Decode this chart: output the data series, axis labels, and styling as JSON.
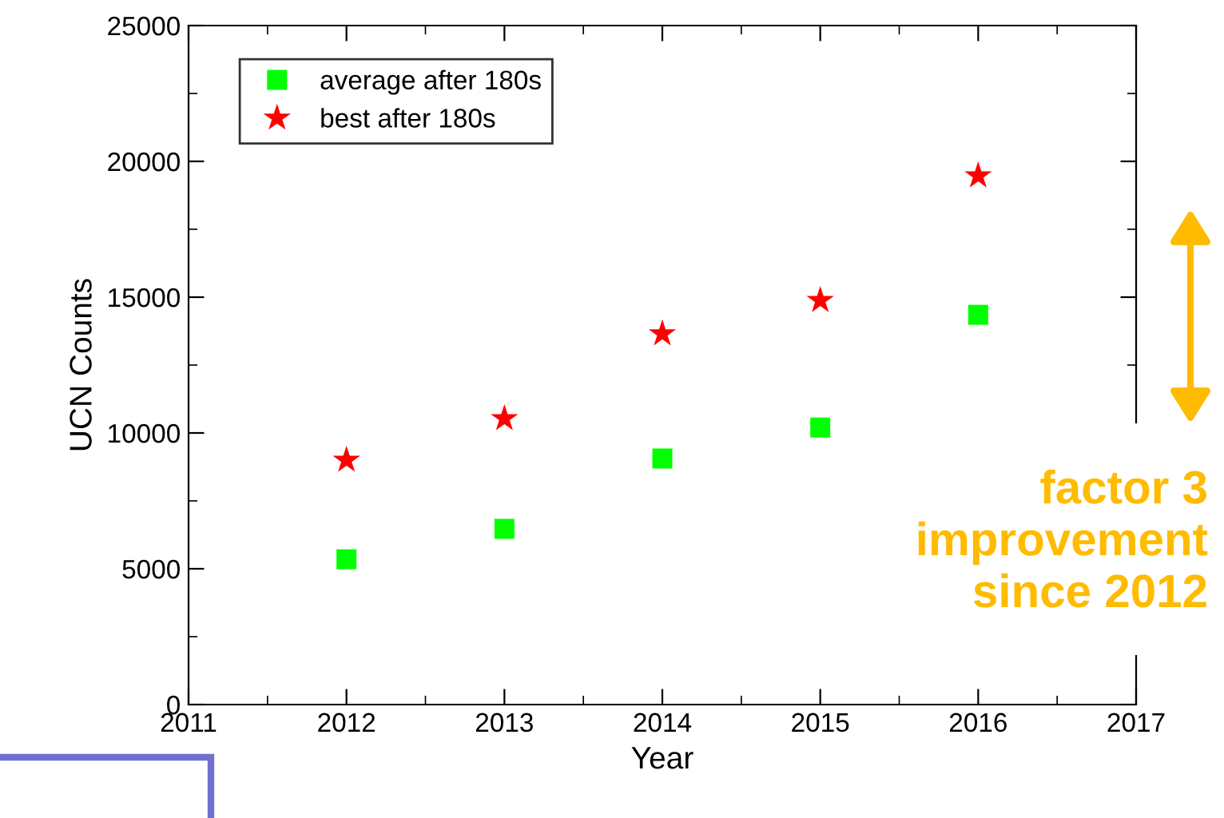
{
  "chart_data": {
    "type": "scatter",
    "xlabel": "Year",
    "ylabel": "UCN Counts",
    "x": [
      2012,
      2013,
      2014,
      2015,
      2016
    ],
    "series": [
      {
        "name": "average after 180s",
        "color": "#00ff00",
        "marker": "square",
        "values": [
          5350,
          6470,
          9060,
          10200,
          14350
        ]
      },
      {
        "name": "best after 180s",
        "color": "#ff0000",
        "marker": "star",
        "values": [
          9000,
          10530,
          13650,
          14880,
          19470
        ]
      }
    ],
    "xlim": [
      2011,
      2017
    ],
    "xticks": [
      2011,
      2012,
      2013,
      2014,
      2015,
      2016,
      2017
    ],
    "ylim": [
      0,
      25000
    ],
    "yticks": [
      0,
      5000,
      10000,
      15000,
      20000,
      25000
    ],
    "grid": false,
    "legend": "top left",
    "annotations": [
      "factor 3\nimprovement\nsince 2012"
    ]
  }
}
